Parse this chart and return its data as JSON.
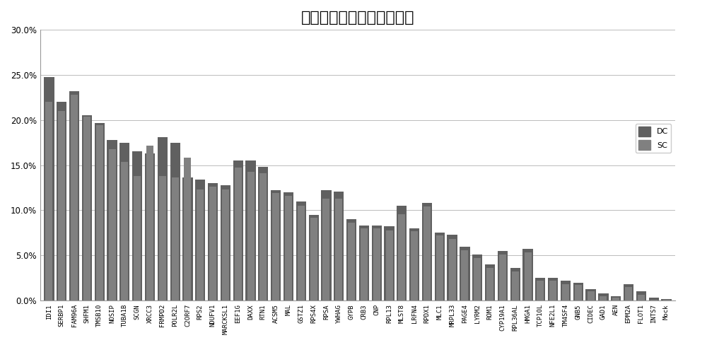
{
  "title": "实验验证筛选结果的阳性率",
  "categories": [
    "IDI1",
    "SERBP1",
    "FAM96A",
    "SHFM1",
    "TMSB10",
    "NOSIP",
    "TUBA1B",
    "SCGN",
    "XRCC3",
    "FRMPD2",
    "POLR2L",
    "C2ORF7",
    "RPS2",
    "NDUFV1",
    "MARCKSL1",
    "EEF1G",
    "DAXX",
    "RTN1",
    "ACSM5",
    "MAL",
    "GSTZ1",
    "RPS4X",
    "RPSA",
    "YWHAG",
    "GYPB",
    "CRB3",
    "CNP",
    "RPL13",
    "MLST8",
    "LRFN4",
    "RPDX1",
    "MLC1",
    "MRPL33",
    "PAGE4",
    "LYRM2",
    "ROM1",
    "CYP19A1",
    "RPL36AL",
    "HMGA1",
    "TCP10L",
    "NFE2L1",
    "TM4SF4",
    "GNB5",
    "CIDEC",
    "GAD1",
    "AEN",
    "EPM2A",
    "FLOT1",
    "INTS7",
    "Mock"
  ],
  "dc_values": [
    0.248,
    0.22,
    0.232,
    0.205,
    0.197,
    0.178,
    0.175,
    0.165,
    0.163,
    0.181,
    0.175,
    0.136,
    0.134,
    0.13,
    0.128,
    0.155,
    0.155,
    0.148,
    0.122,
    0.12,
    0.11,
    0.095,
    0.122,
    0.121,
    0.09,
    0.083,
    0.083,
    0.082,
    0.105,
    0.08,
    0.108,
    0.075,
    0.073,
    0.06,
    0.051,
    0.04,
    0.055,
    0.036,
    0.057,
    0.025,
    0.025,
    0.022,
    0.02,
    0.013,
    0.008,
    0.005,
    0.018,
    0.01,
    0.003,
    0.002
  ],
  "sc_values": [
    0.22,
    0.21,
    0.228,
    0.204,
    0.194,
    0.168,
    0.154,
    0.138,
    0.172,
    0.138,
    0.136,
    0.158,
    0.123,
    0.126,
    0.123,
    0.147,
    0.143,
    0.141,
    0.119,
    0.116,
    0.105,
    0.092,
    0.113,
    0.113,
    0.086,
    0.08,
    0.08,
    0.078,
    0.096,
    0.077,
    0.104,
    0.072,
    0.068,
    0.056,
    0.047,
    0.036,
    0.051,
    0.032,
    0.053,
    0.022,
    0.022,
    0.018,
    0.017,
    0.01,
    0.005,
    0.003,
    0.015,
    0.006,
    0.001,
    0.001
  ],
  "bar_color_dc": "#606060",
  "bar_color_sc": "#808080",
  "ylim": [
    0,
    0.3
  ],
  "yticks": [
    0.0,
    0.05,
    0.1,
    0.15,
    0.2,
    0.25,
    0.3
  ],
  "ytick_labels": [
    "0.0%",
    "5.0%",
    "10.0%",
    "15.0%",
    "20.0%",
    "25.0%",
    "30.0%"
  ],
  "legend_dc": "DC",
  "legend_sc": "SC",
  "background_color": "#ffffff",
  "grid_color": "#bbbbbb",
  "title_fontsize": 16,
  "tick_fontsize": 6.5,
  "bar_width": 0.8
}
